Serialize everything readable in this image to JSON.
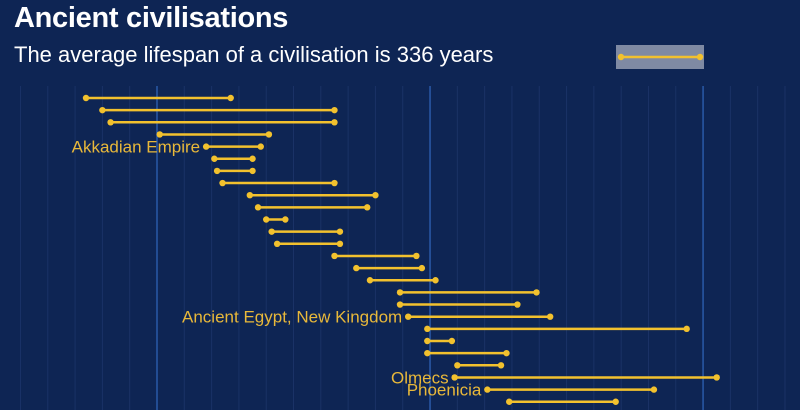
{
  "colors": {
    "background": "#0e2554",
    "title": "#ffffff",
    "bar": "#f2c12e",
    "label": "#e8b83a",
    "grid_major": "#2a5aa8",
    "grid_minor": "#1a3266",
    "legend_bg": "#7f8aa3"
  },
  "header": {
    "title": "Ancient civilisations",
    "subtitle": "The average lifespan of a civilisation is 336 years"
  },
  "chart_data": {
    "type": "range",
    "title": "Ancient civilisations",
    "subtitle": "The average lifespan of a civilisation is 336 years",
    "xlabel": "",
    "ylabel": "",
    "xlim": [
      -3575,
      -645
    ],
    "major_gridlines": [
      -3000,
      -2000,
      -1000
    ],
    "minor_gridline_step": 100,
    "legend": "top-right",
    "series": [
      {
        "label": "",
        "start": -3260,
        "end": -2730
      },
      {
        "label": "",
        "start": -3200,
        "end": -2350
      },
      {
        "label": "",
        "start": -3170,
        "end": -2350
      },
      {
        "label": "",
        "start": -2990,
        "end": -2590
      },
      {
        "label": "Akkadian Empire",
        "start": -2820,
        "end": -2620
      },
      {
        "label": "",
        "start": -2790,
        "end": -2650
      },
      {
        "label": "",
        "start": -2780,
        "end": -2650
      },
      {
        "label": "",
        "start": -2760,
        "end": -2350
      },
      {
        "label": "",
        "start": -2660,
        "end": -2200
      },
      {
        "label": "",
        "start": -2630,
        "end": -2230
      },
      {
        "label": "",
        "start": -2600,
        "end": -2530
      },
      {
        "label": "",
        "start": -2580,
        "end": -2330
      },
      {
        "label": "",
        "start": -2560,
        "end": -2330
      },
      {
        "label": "",
        "start": -2350,
        "end": -2050
      },
      {
        "label": "",
        "start": -2270,
        "end": -2030
      },
      {
        "label": "",
        "start": -2220,
        "end": -1980
      },
      {
        "label": "",
        "start": -2110,
        "end": -1610
      },
      {
        "label": "",
        "start": -2110,
        "end": -1680
      },
      {
        "label": "Ancient Egypt, New Kingdom",
        "start": -2080,
        "end": -1560
      },
      {
        "label": "",
        "start": -2010,
        "end": -1060
      },
      {
        "label": "",
        "start": -2010,
        "end": -1920
      },
      {
        "label": "",
        "start": -2010,
        "end": -1720
      },
      {
        "label": "",
        "start": -1900,
        "end": -1740
      },
      {
        "label": "Olmecs",
        "start": -1910,
        "end": -950
      },
      {
        "label": "Phoenicia",
        "start": -1790,
        "end": -1180
      },
      {
        "label": "",
        "start": -1710,
        "end": -1320
      }
    ]
  }
}
